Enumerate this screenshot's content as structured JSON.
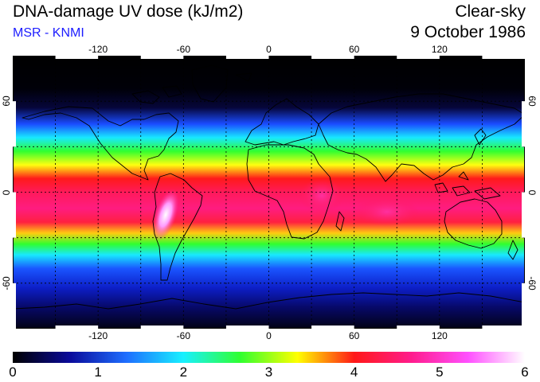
{
  "header": {
    "title": "DNA-damage UV dose (kJ/m2)",
    "subtitle": "MSR - KNMI",
    "sky_condition": "Clear-sky",
    "date": "9 October 1986"
  },
  "map": {
    "lon_ticks": [
      "-120",
      "-60",
      "0",
      "60",
      "120"
    ],
    "lat_ticks_left": [
      "60",
      "0",
      "-60"
    ],
    "lat_ticks_right": [
      "60",
      "0",
      "-60"
    ]
  },
  "colorbar": {
    "labels": [
      "0",
      "1",
      "2",
      "3",
      "4",
      "5",
      "6"
    ],
    "colors": [
      "#000000",
      "#0a0a9a",
      "#1e6eff",
      "#18f0ff",
      "#30ff30",
      "#ffff00",
      "#ff1818",
      "#ff1c8c",
      "#ff50ff",
      "#ffffff"
    ]
  },
  "colors": {
    "subtitle": "#1c1cff",
    "ocean_background": "#000000",
    "coastline": "#000000",
    "grid": "#000000"
  }
}
